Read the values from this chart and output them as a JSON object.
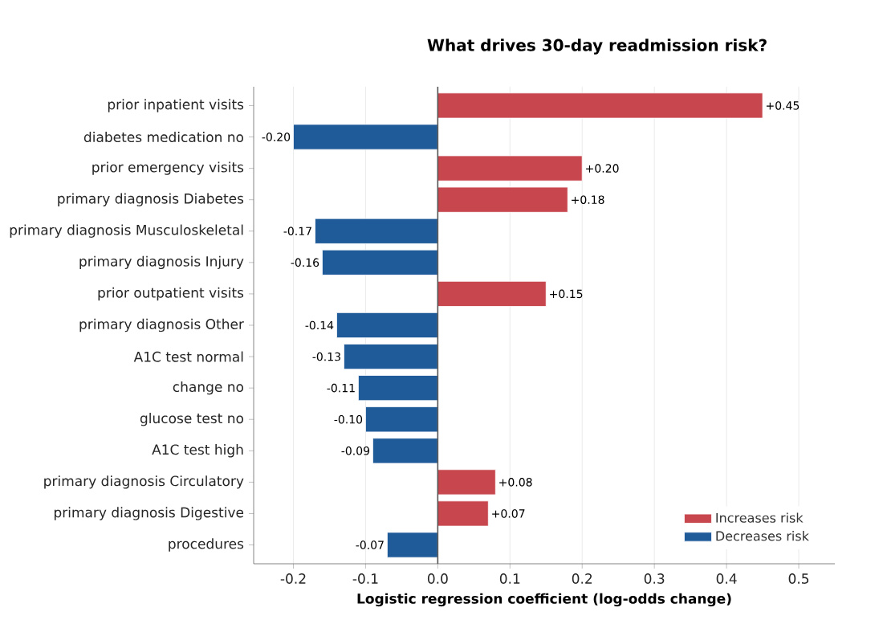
{
  "chart_data": {
    "type": "bar",
    "orientation": "horizontal",
    "title": "What drives 30-day readmission risk?",
    "xlabel": "Logistic regression coefficient (log-odds change)",
    "categories": [
      "prior inpatient visits",
      "diabetes medication no",
      "prior emergency visits",
      "primary diagnosis Diabetes",
      "primary diagnosis Musculoskeletal",
      "primary diagnosis Injury",
      "prior outpatient visits",
      "primary diagnosis Other",
      "A1C test normal",
      "change no",
      "glucose test no",
      "A1C test high",
      "primary diagnosis Circulatory",
      "primary diagnosis Digestive",
      "procedures"
    ],
    "series": [
      {
        "name": "Increases risk",
        "color": "#c8474f",
        "values": [
          0.45,
          null,
          0.2,
          0.18,
          null,
          null,
          0.15,
          null,
          null,
          null,
          null,
          null,
          0.08,
          0.07,
          null
        ],
        "value_labels": [
          "+0.45",
          null,
          "+0.20",
          "+0.18",
          null,
          null,
          "+0.15",
          null,
          null,
          null,
          null,
          null,
          "+0.08",
          "+0.07",
          null
        ]
      },
      {
        "name": "Decreases risk",
        "color": "#1f5a99",
        "values": [
          null,
          -0.2,
          null,
          null,
          -0.17,
          -0.16,
          null,
          -0.14,
          -0.13,
          -0.11,
          -0.1,
          -0.09,
          null,
          null,
          -0.07
        ],
        "value_labels": [
          null,
          "-0.20",
          null,
          null,
          "-0.17",
          "-0.16",
          null,
          "-0.14",
          "-0.13",
          "-0.11",
          "-0.10",
          "-0.09",
          null,
          null,
          "-0.07"
        ]
      }
    ],
    "xlim": [
      -0.255,
      0.55
    ],
    "xticks": [
      -0.2,
      -0.1,
      {
        "value": 0,
        "label": "0.0"
      },
      0.1,
      0.2,
      0.3,
      0.4,
      0.5
    ],
    "ref_lines": [
      {
        "axis": "x",
        "value": 0,
        "color": "#555555"
      }
    ],
    "grid": "x",
    "legend": "bottom right"
  }
}
